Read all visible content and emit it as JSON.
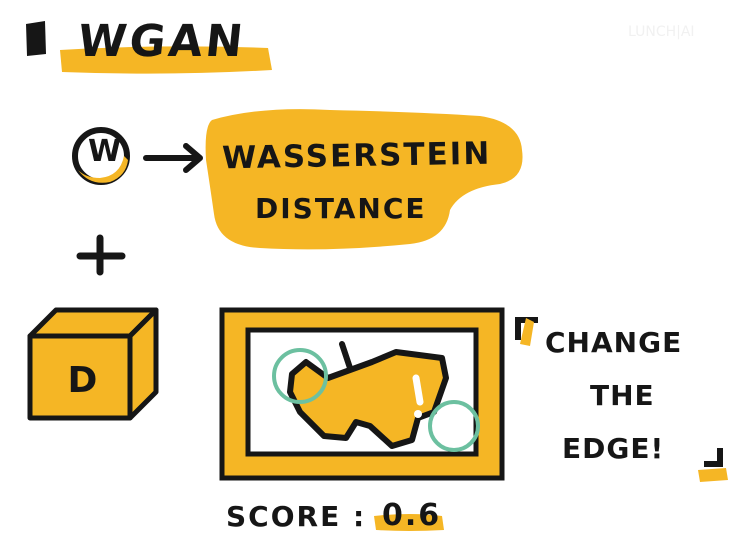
{
  "title": "WGAN",
  "critic_symbol": "W",
  "wasserstein_label": {
    "line1": "WASSERSTEIN",
    "line2": "DISTANCE"
  },
  "plus_symbol": "+",
  "discriminator_symbol": "D",
  "quote": {
    "line1": "CHANGE",
    "line2": "THE",
    "line3": "EDGE!"
  },
  "score": {
    "label": "SCORE",
    "separator": ":",
    "value": "0.6"
  },
  "watermark": "lunch|AI",
  "colors": {
    "accent": "#f5b625",
    "ink": "#161616",
    "circle": "#6cc0a0",
    "background": "#ffffff"
  }
}
